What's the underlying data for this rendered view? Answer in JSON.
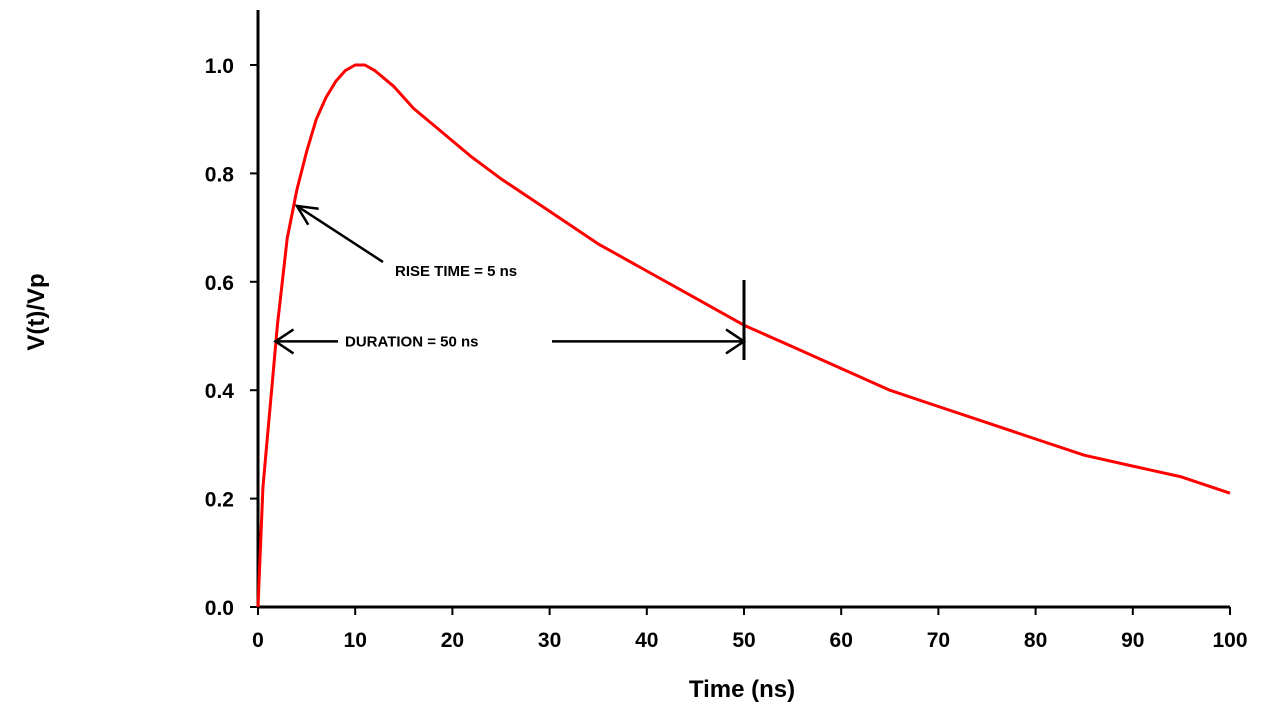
{
  "chart_data": {
    "type": "line",
    "title": "",
    "xlabel": "Time (ns)",
    "ylabel": "V(t)/Vp",
    "xlim": [
      0,
      100
    ],
    "ylim": [
      0,
      1.1
    ],
    "grid": false,
    "x_ticks": [
      "0",
      "10",
      "20",
      "30",
      "40",
      "50",
      "60",
      "70",
      "80",
      "90",
      "100"
    ],
    "y_ticks": [
      "0.0",
      "0.2",
      "0.4",
      "0.6",
      "0.8",
      "1.0"
    ],
    "series": [
      {
        "color": "#ff0000",
        "x": [
          0,
          0.5,
          1,
          1.5,
          2,
          2.5,
          3,
          4,
          5,
          6,
          7,
          8,
          9,
          10,
          11,
          12,
          14,
          16,
          18,
          20,
          22,
          25,
          30,
          35,
          40,
          45,
          50,
          55,
          60,
          65,
          70,
          75,
          80,
          85,
          90,
          95,
          100
        ],
        "y": [
          0,
          0.22,
          0.32,
          0.42,
          0.52,
          0.6,
          0.68,
          0.77,
          0.84,
          0.9,
          0.94,
          0.97,
          0.99,
          1.0,
          1.0,
          0.99,
          0.96,
          0.92,
          0.89,
          0.86,
          0.83,
          0.79,
          0.73,
          0.67,
          0.62,
          0.57,
          0.52,
          0.48,
          0.44,
          0.4,
          0.37,
          0.34,
          0.31,
          0.28,
          0.26,
          0.24,
          0.21
        ]
      }
    ],
    "annotations": [
      {
        "text": "RISE TIME = 5 ns",
        "arrow_to_x": 4,
        "arrow_to_y": 0.74
      },
      {
        "text": "DURATION = 50 ns",
        "y": 0.49,
        "from_x": 1.8,
        "to_x": 50
      }
    ]
  }
}
